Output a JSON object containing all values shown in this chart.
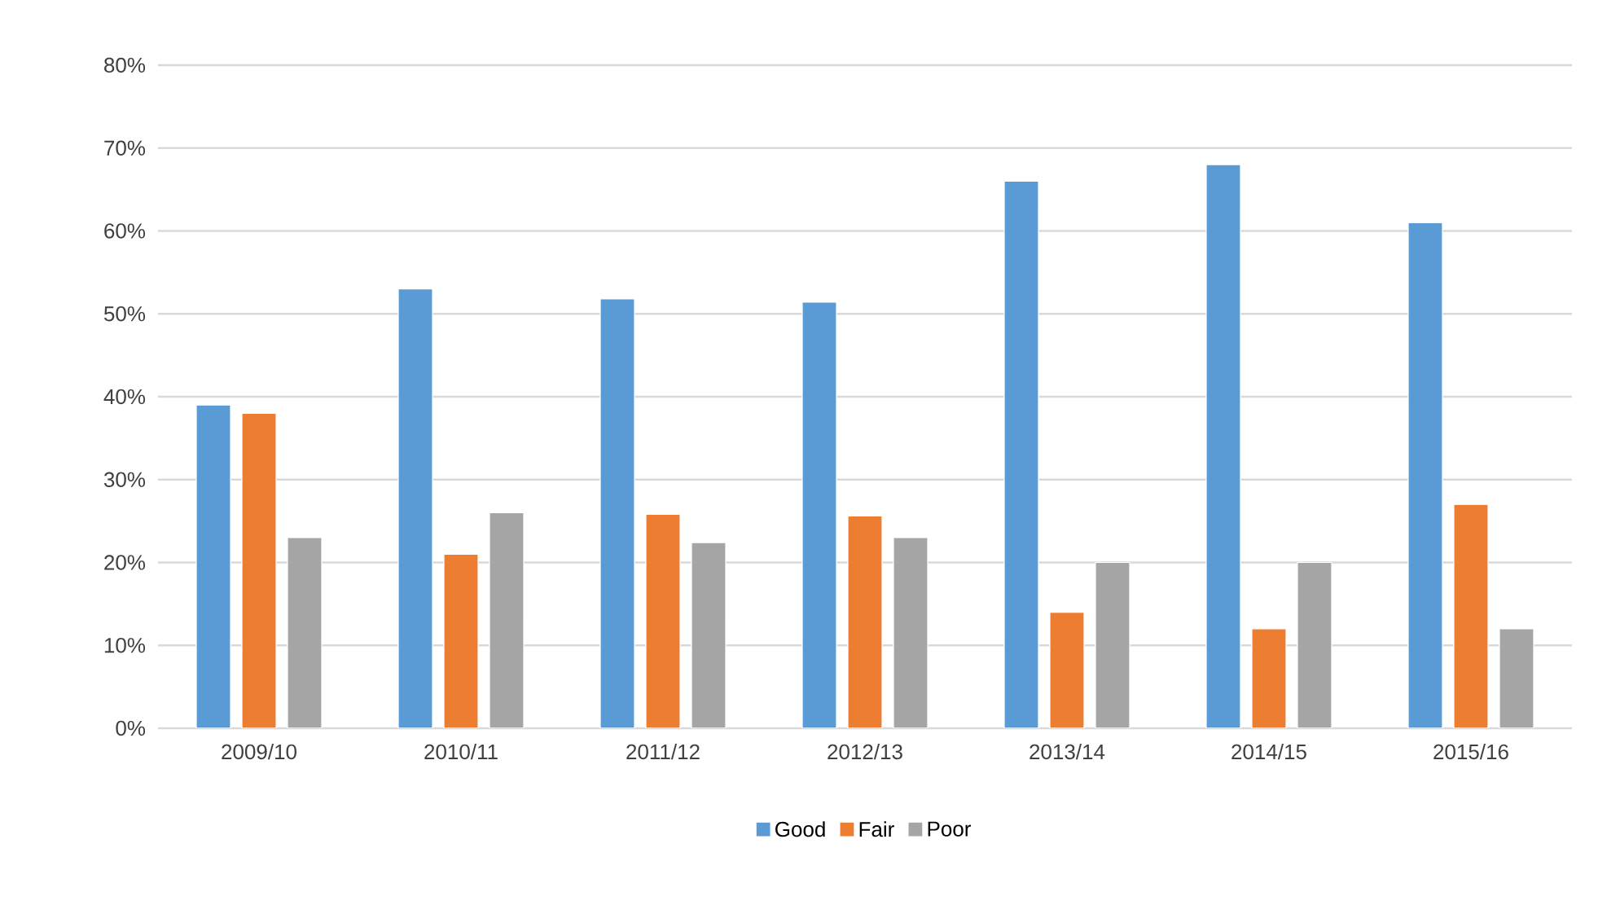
{
  "chart_data": {
    "type": "bar",
    "categories": [
      "2009/10",
      "2010/11",
      "2011/12",
      "2012/13",
      "2013/14",
      "2014/15",
      "2015/16"
    ],
    "series": [
      {
        "name": "Good",
        "color": "#5b9bd5",
        "values": [
          39,
          53,
          51.8,
          51.4,
          66,
          68,
          61
        ]
      },
      {
        "name": "Fair",
        "color": "#ed7d31",
        "values": [
          38,
          21,
          25.8,
          25.6,
          14,
          12,
          27
        ]
      },
      {
        "name": "Poor",
        "color": "#a5a5a5",
        "values": [
          23,
          26,
          22.4,
          23,
          20,
          20,
          12
        ]
      }
    ],
    "ylim": [
      0,
      80
    ],
    "yticks": [
      {
        "value": 0,
        "label": "0%"
      },
      {
        "value": 10,
        "label": "10%"
      },
      {
        "value": 20,
        "label": "20%"
      },
      {
        "value": 30,
        "label": "30%"
      },
      {
        "value": 40,
        "label": "40%"
      },
      {
        "value": 50,
        "label": "50%"
      },
      {
        "value": 60,
        "label": "60%"
      },
      {
        "value": 70,
        "label": "70%"
      },
      {
        "value": 80,
        "label": "80%"
      }
    ],
    "grid": "y",
    "legend": "bottom"
  }
}
